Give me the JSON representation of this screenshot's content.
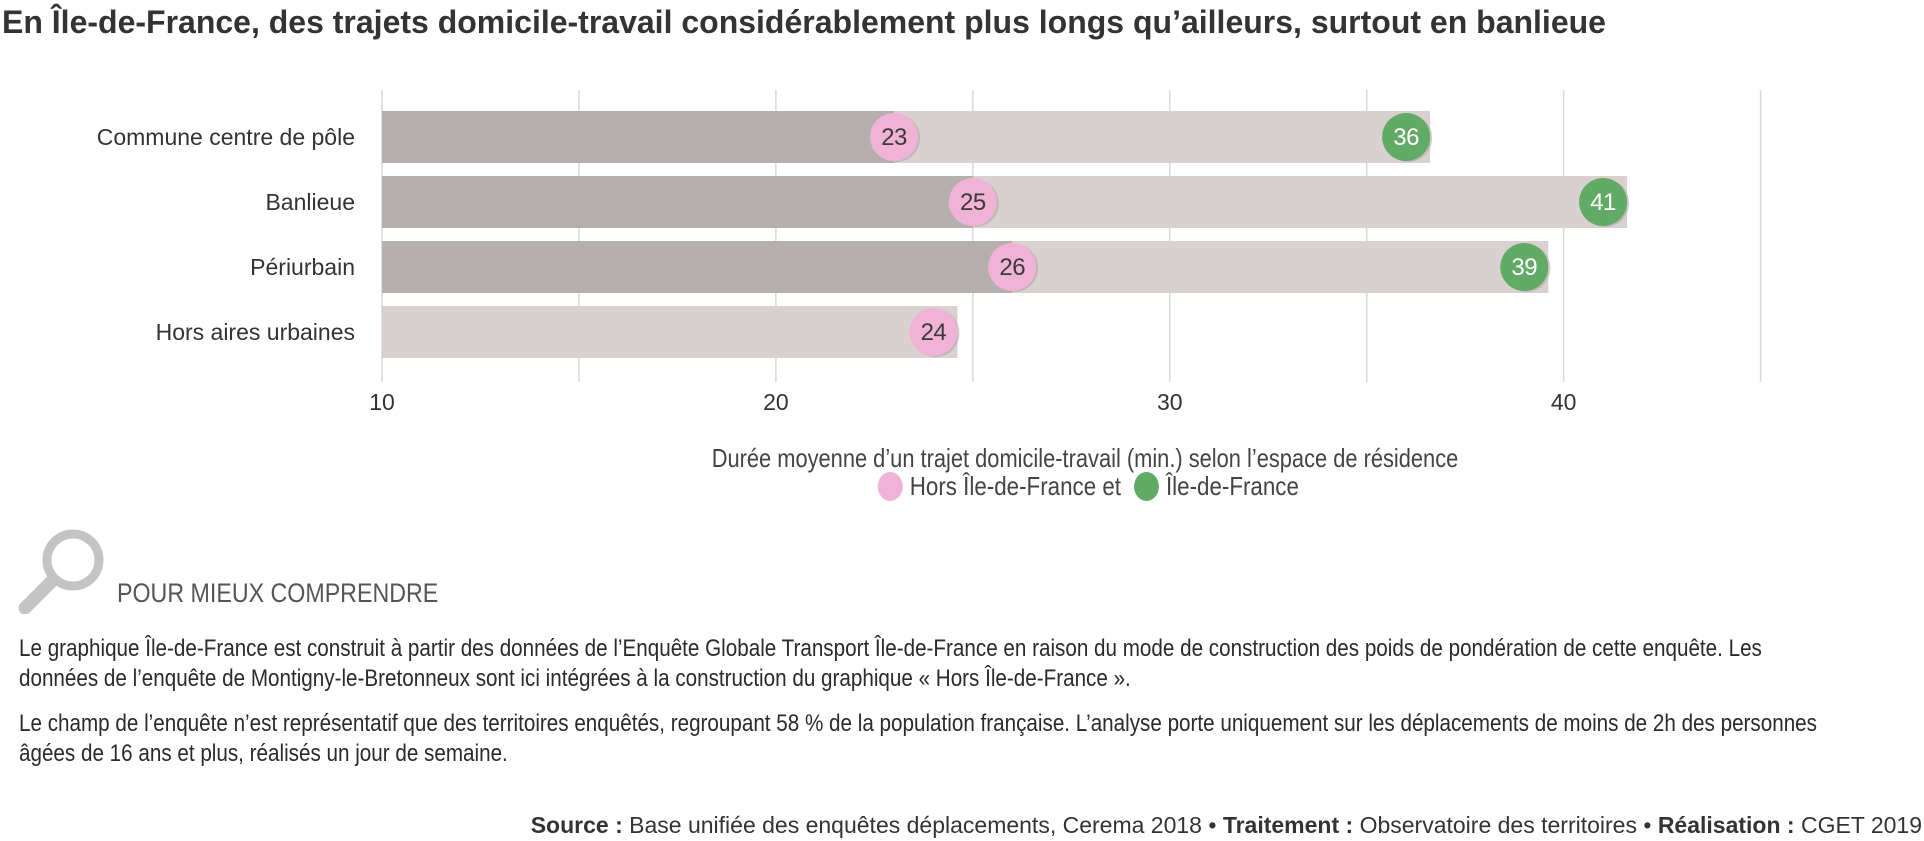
{
  "title": "En Île-de-France, des trajets domicile-travail considérablement plus longs qu’ailleurs, surtout en banlieue",
  "colors": {
    "hors_idf": "#f0b3d6",
    "idf": "#62ab66",
    "bar_idf": "#b5b0ae",
    "bar_hors": "#d8d1cf",
    "grid": "#d9d9d9"
  },
  "chart_data": {
    "type": "bar",
    "categories": [
      "Commune centre de pôle",
      "Banlieue",
      "Périurbain",
      "Hors aires urbaines"
    ],
    "series": [
      {
        "name": "Hors Île-de-France",
        "values": [
          23,
          25,
          26,
          24
        ]
      },
      {
        "name": "Île-de-France",
        "values": [
          36,
          41,
          39,
          null
        ]
      }
    ],
    "xlim": [
      10,
      46
    ],
    "xticks": [
      10,
      20,
      30,
      40
    ],
    "grid": true,
    "legend_position": "bottom",
    "legend_caption": "Durée moyenne d’un trajet domicile-travail (min.) selon l’espace de résidence",
    "legend_joiner": "et"
  },
  "section": {
    "icon": "magnifier-icon",
    "heading": "POUR MIEUX COMPRENDRE",
    "paragraph1": "Le graphique Île-de-France est construit à partir des données de l’Enquête Globale Transport Île-de-France en raison du mode de construction des poids de pondération de cette enquête. Les données de l’enquête de Montigny-le-Bretonneux sont ici intégrées à la construction du graphique « Hors Île-de-France ».",
    "paragraph2": "Le champ de l’enquête n’est représentatif que des territoires enquêtés, regroupant 58 % de la population française. L’analyse porte uniquement sur les déplacements de moins de 2h des personnes âgées de 16 ans et plus, réalisés un jour de semaine."
  },
  "footer": {
    "source_label": "Source :",
    "source_text": "Base unifiée des enquêtes déplacements, Cerema 2018",
    "treatment_label": "Traitement :",
    "treatment_text": "Observatoire des territoires",
    "production_label": "Réalisation :",
    "production_text": "CGET 2019",
    "separator": "•"
  }
}
